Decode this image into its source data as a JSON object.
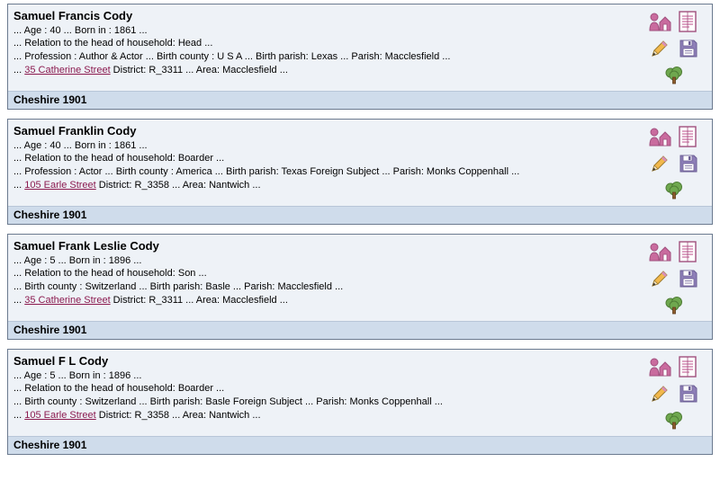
{
  "colors": {
    "card_bg": "#eef2f7",
    "footer_bg": "#cfdceb",
    "border": "#6b7a8f",
    "link": "#8b1a4f",
    "icon_pink": "#c96b9e",
    "icon_pink_dark": "#a04f7d",
    "icon_floppy": "#8e7fb8",
    "icon_floppy_dark": "#6b5e94",
    "icon_pencil_body": "#f2b84b",
    "icon_pencil_tip": "#3a3a3a",
    "icon_tree_leaf": "#6fa84f",
    "icon_tree_trunk": "#8a5a2b"
  },
  "records": [
    {
      "name": "Samuel Francis Cody",
      "lines": [
        "... Age : 40 ... Born in : 1861 ...",
        "... Relation to the head of household: Head ...",
        "... Profession : Author & Actor ... Birth county : U S A ... Birth parish: Lexas ... Parish: Macclesfield ..."
      ],
      "address": "35 Catherine Street",
      "address_suffix": " District: R_3311 ... Area: Macclesfield ...",
      "footer": "Cheshire 1901"
    },
    {
      "name": "Samuel Franklin Cody",
      "lines": [
        "... Age : 40 ... Born in : 1861 ...",
        "... Relation to the head of household: Boarder ...",
        "... Profession : Actor ... Birth county : America ... Birth parish: Texas Foreign Subject ... Parish: Monks Coppenhall ..."
      ],
      "address": "105 Earle Street",
      "address_suffix": " District: R_3358 ... Area: Nantwich ...",
      "footer": "Cheshire 1901"
    },
    {
      "name": "Samuel Frank Leslie Cody",
      "lines": [
        "... Age : 5 ... Born in : 1896 ...",
        "... Relation to the head of household: Son ...",
        "... Birth county : Switzerland ... Birth parish: Basle ... Parish: Macclesfield ..."
      ],
      "address": "35 Catherine Street",
      "address_suffix": " District: R_3311 ... Area: Macclesfield ...",
      "footer": "Cheshire 1901"
    },
    {
      "name": "Samuel F L Cody",
      "lines": [
        "... Age : 5 ... Born in : 1896 ...",
        "... Relation to the head of household: Boarder ...",
        "... Birth county : Switzerland ... Birth parish: Basle Foreign Subject ... Parish: Monks Coppenhall ..."
      ],
      "address": "105 Earle Street",
      "address_suffix": " District: R_3358 ... Area: Nantwich ...",
      "footer": "Cheshire 1901"
    }
  ]
}
